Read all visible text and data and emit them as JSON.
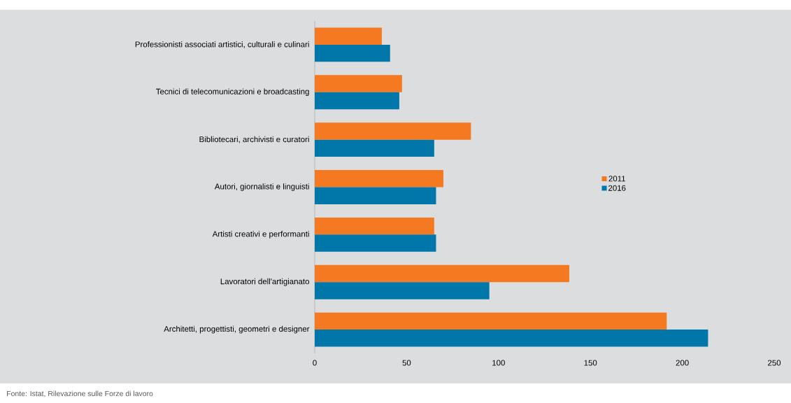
{
  "chart_data": {
    "type": "bar",
    "orientation": "horizontal",
    "categories": [
      "Professionisti associati artistici, culturali e culinari",
      "Tecnici di telecomunicazioni e broadcasting",
      "Bibliotecari, archivisti e curatori",
      "Autori, giornalisti e linguisti",
      "Artisti creativi e performanti",
      "Lavoratori dell'artigianato",
      "Architetti, progettisti, geometri e designer"
    ],
    "series": [
      {
        "name": "2011",
        "color": "#f47920",
        "values": [
          36.5,
          47.5,
          85,
          70,
          65,
          138.5,
          191.5
        ]
      },
      {
        "name": "2016",
        "color": "#0077a8",
        "values": [
          41,
          46,
          65,
          66,
          66,
          95,
          214
        ]
      }
    ],
    "xlim": [
      0,
      250
    ],
    "xticks": [
      0,
      50,
      100,
      150,
      200,
      250
    ],
    "grid": false,
    "legend": "right",
    "annotations": [
      "Fonte: Istat, Rilevazione sulle Forze di lavoro"
    ]
  }
}
